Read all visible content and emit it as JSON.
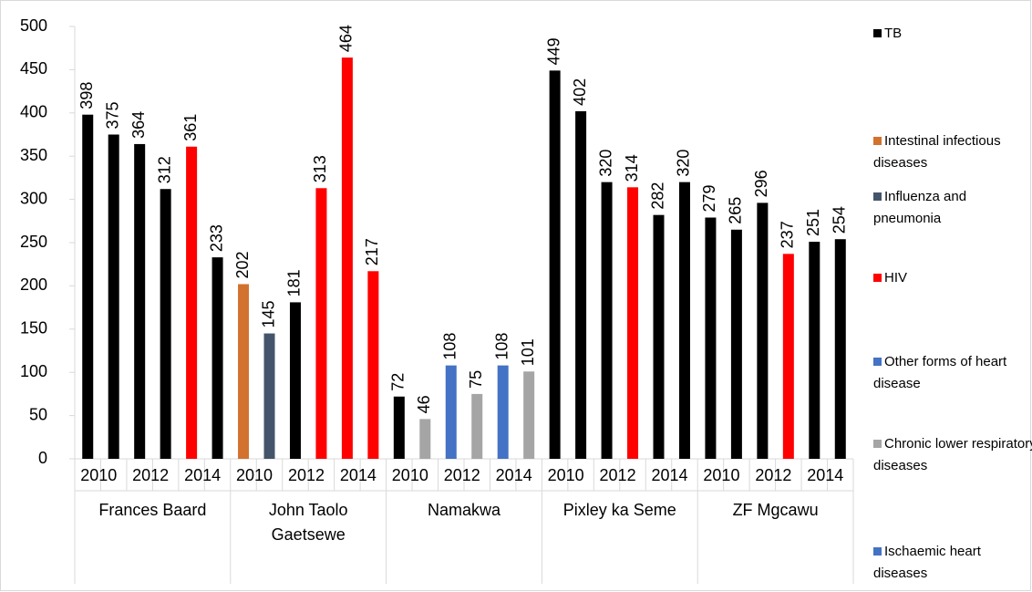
{
  "chart_data": {
    "type": "bar",
    "categories": [
      "2010",
      null,
      "2012",
      null,
      "2014",
      null,
      "2010",
      null,
      "2012",
      null,
      "2014",
      null,
      "2010",
      null,
      "2012",
      null,
      "2014",
      null,
      "2010",
      null,
      "2012",
      null,
      "2014",
      null,
      "2010",
      null,
      "2012",
      null,
      "2014",
      null
    ],
    "groups": [
      "Frances Baard",
      "John Taolo Gaetsewe",
      "Namakwa",
      "Pixley ka Seme",
      "ZF Mgcawu"
    ],
    "series": [
      {
        "name": "TB",
        "color": "#000000",
        "values": [
          398,
          375,
          364,
          312,
          null,
          233,
          null,
          null,
          181,
          null,
          null,
          null,
          72,
          null,
          null,
          null,
          null,
          null,
          449,
          402,
          320,
          null,
          282,
          320,
          279,
          265,
          296,
          null,
          251,
          254
        ]
      },
      {
        "name": "Intestinal infectious diseases",
        "color": "#d2722e",
        "values": [
          null,
          null,
          null,
          null,
          null,
          null,
          202,
          null,
          null,
          null,
          null,
          null,
          null,
          null,
          null,
          null,
          null,
          null,
          null,
          null,
          null,
          null,
          null,
          null,
          null,
          null,
          null,
          null,
          null,
          null
        ]
      },
      {
        "name": "Influenza and pneumonia",
        "color": "#44546a",
        "values": [
          null,
          null,
          null,
          null,
          null,
          null,
          null,
          145,
          null,
          null,
          null,
          null,
          null,
          null,
          null,
          null,
          null,
          null,
          null,
          null,
          null,
          null,
          null,
          null,
          null,
          null,
          null,
          null,
          null,
          null
        ]
      },
      {
        "name": "HIV",
        "color": "#ff0000",
        "values": [
          null,
          null,
          null,
          null,
          361,
          null,
          null,
          null,
          null,
          313,
          464,
          217,
          null,
          null,
          null,
          null,
          null,
          null,
          null,
          null,
          null,
          314,
          null,
          null,
          null,
          null,
          null,
          237,
          null,
          null
        ]
      },
      {
        "name": "Other forms of heart disease",
        "color": "#4472c4",
        "values": [
          null,
          null,
          null,
          null,
          null,
          null,
          null,
          null,
          null,
          null,
          null,
          null,
          null,
          null,
          108,
          null,
          null,
          null,
          null,
          null,
          null,
          null,
          null,
          null,
          null,
          null,
          null,
          null,
          null,
          null
        ]
      },
      {
        "name": "Chronic lower respiratory diseases",
        "color": "#a5a5a5",
        "values": [
          null,
          null,
          null,
          null,
          null,
          null,
          null,
          null,
          null,
          null,
          null,
          null,
          null,
          46,
          null,
          75,
          null,
          101,
          null,
          null,
          null,
          null,
          null,
          null,
          null,
          null,
          null,
          null,
          null,
          null
        ]
      },
      {
        "name": "Ischaemic heart diseases",
        "color": "#4472c4",
        "values": [
          null,
          null,
          null,
          null,
          null,
          null,
          null,
          null,
          null,
          null,
          null,
          null,
          null,
          null,
          null,
          null,
          108,
          null,
          null,
          null,
          null,
          null,
          null,
          null,
          null,
          null,
          null,
          null,
          null,
          null
        ]
      }
    ],
    "ylim": [
      0,
      500
    ],
    "yticks": [
      0,
      50,
      100,
      150,
      200,
      250,
      300,
      350,
      400,
      450,
      500
    ],
    "grid": false,
    "legend": "right"
  }
}
